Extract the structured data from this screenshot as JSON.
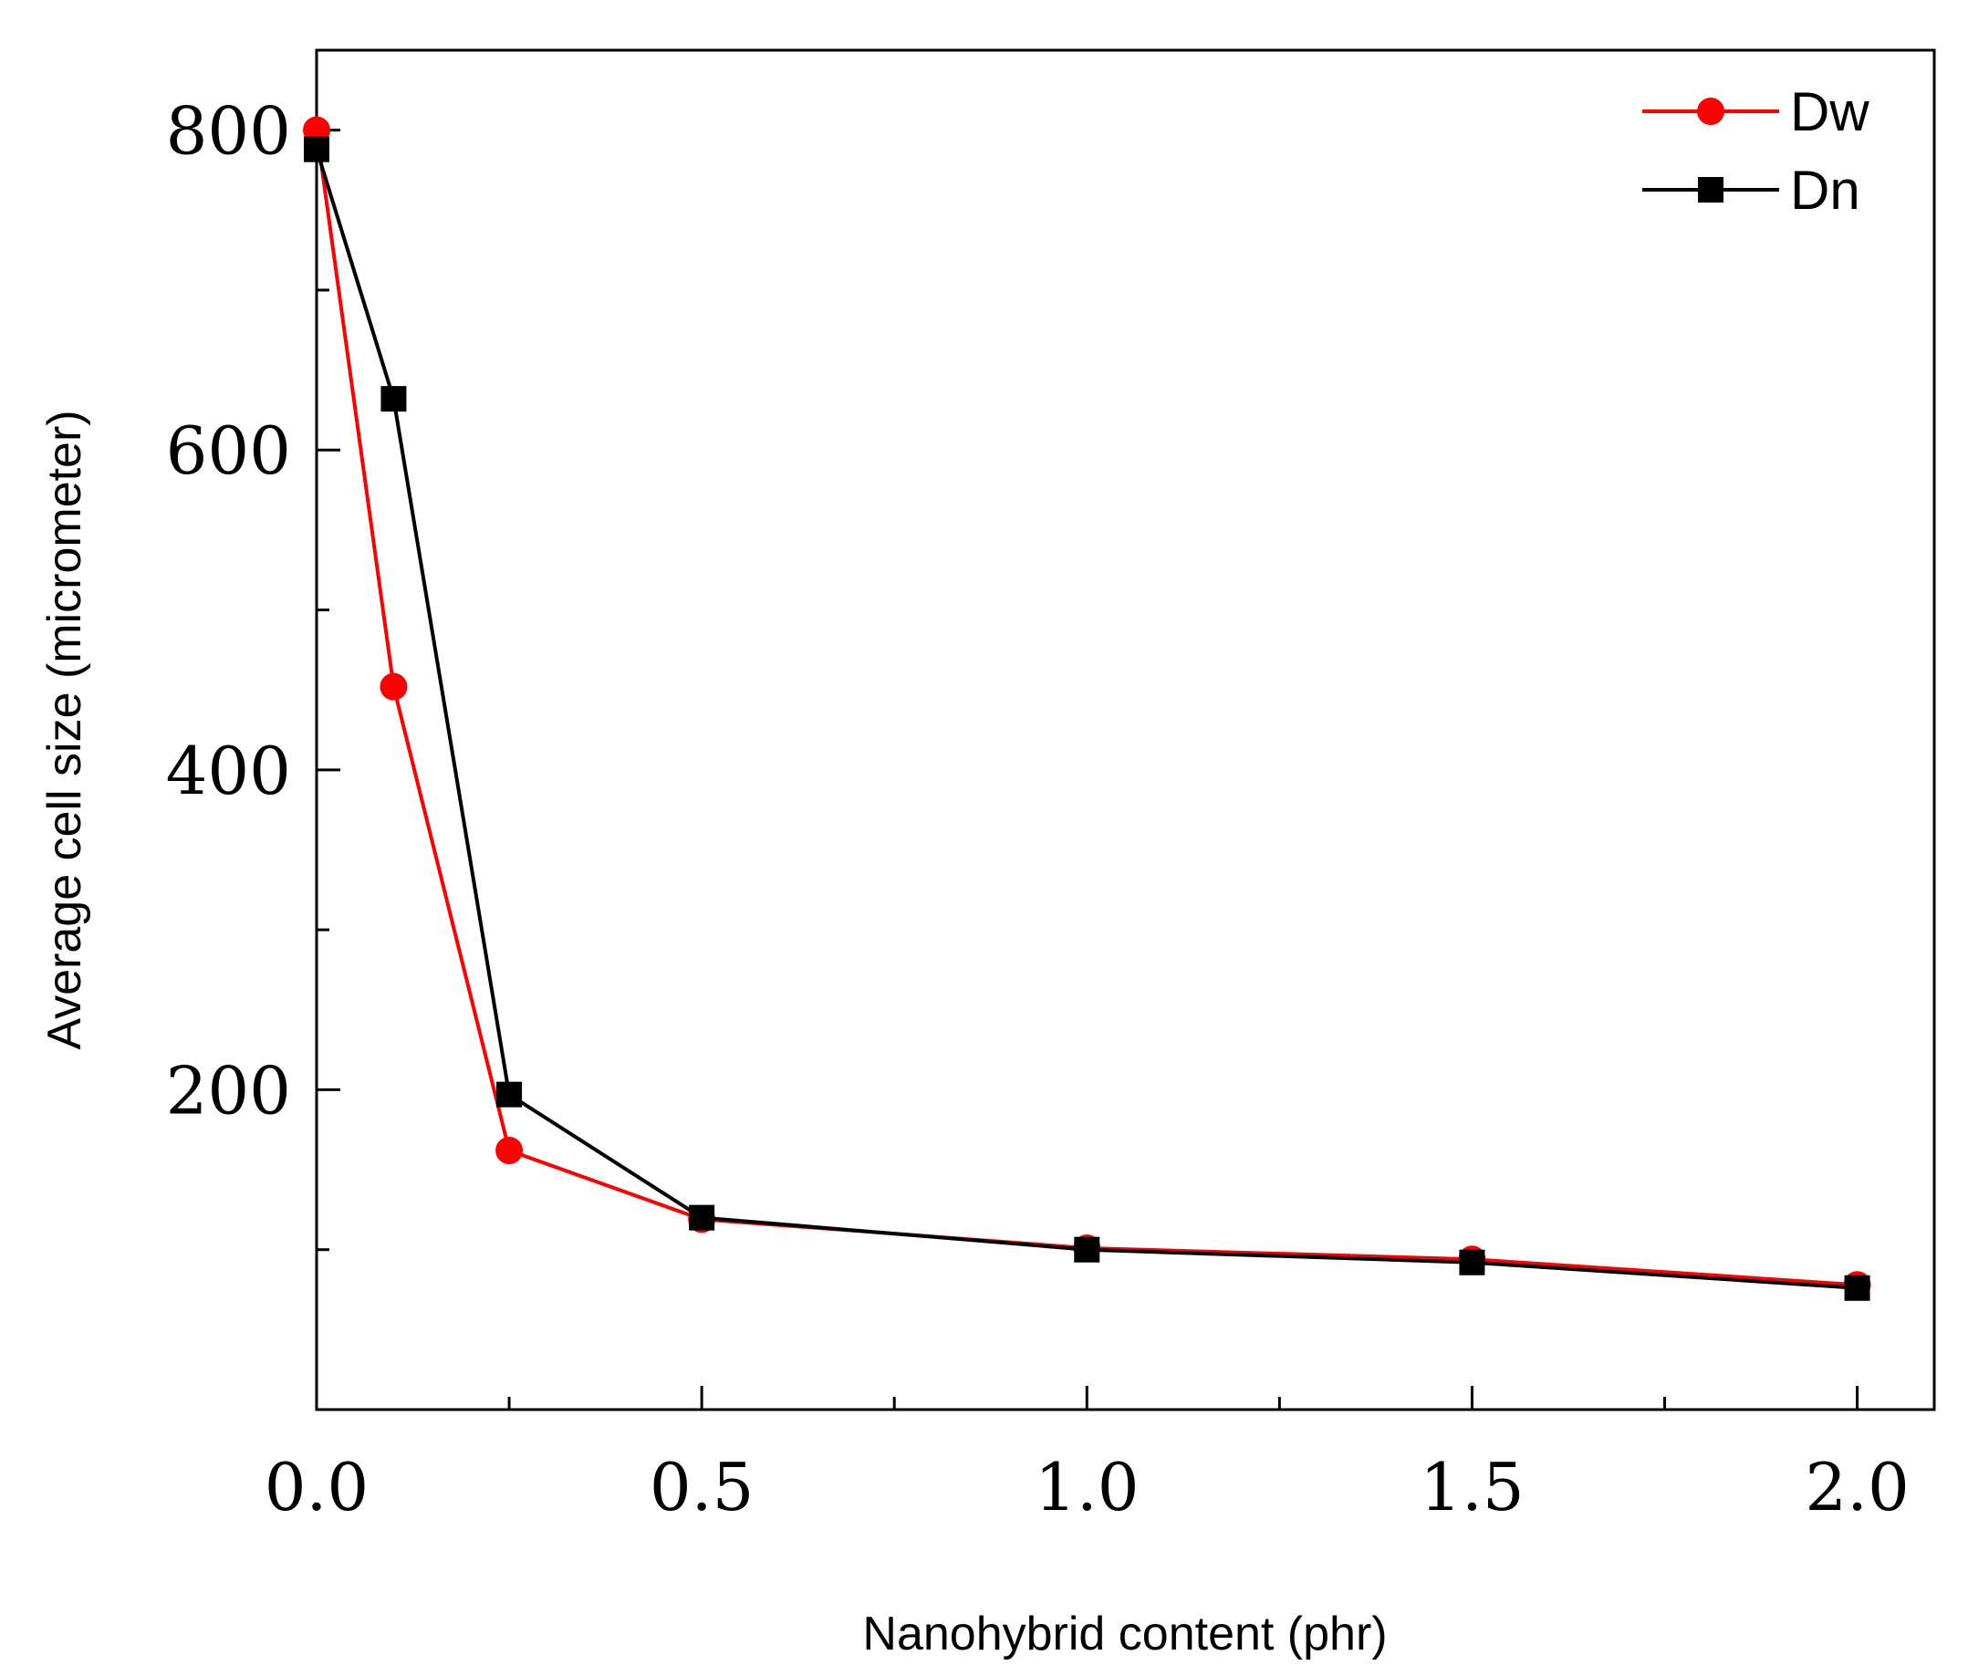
{
  "chart_data": {
    "type": "line",
    "xlabel": "Nanohybrid content (phr)",
    "ylabel": "Average cell size (micrometer)",
    "xlim": [
      0,
      2.1
    ],
    "ylim": [
      0,
      850
    ],
    "x_ticks": [
      0.0,
      0.5,
      1.0,
      1.5,
      2.0
    ],
    "x_tick_labels": [
      "0.0",
      "0.5",
      "1.0",
      "1.5",
      "2.0"
    ],
    "x_minor_ticks": [
      0.25,
      0.75,
      1.25,
      1.75
    ],
    "y_ticks": [
      200,
      400,
      600,
      800
    ],
    "y_tick_labels": [
      "200",
      "400",
      "600",
      "800"
    ],
    "y_minor_ticks": [
      100,
      300,
      500,
      700
    ],
    "grid": false,
    "legend_position": "top-right",
    "series": [
      {
        "name": "Dw",
        "color": "#ff0000",
        "marker": "circle",
        "x": [
          0.0,
          0.1,
          0.25,
          0.5,
          1.0,
          1.5,
          2.0
        ],
        "y": [
          800,
          452,
          162,
          119,
          101,
          94,
          78
        ]
      },
      {
        "name": "Dn",
        "color": "#000000",
        "marker": "square",
        "x": [
          0.0,
          0.1,
          0.25,
          0.5,
          1.0,
          1.5,
          2.0
        ],
        "y": [
          788,
          632,
          197,
          120,
          100,
          92,
          76
        ]
      }
    ]
  }
}
